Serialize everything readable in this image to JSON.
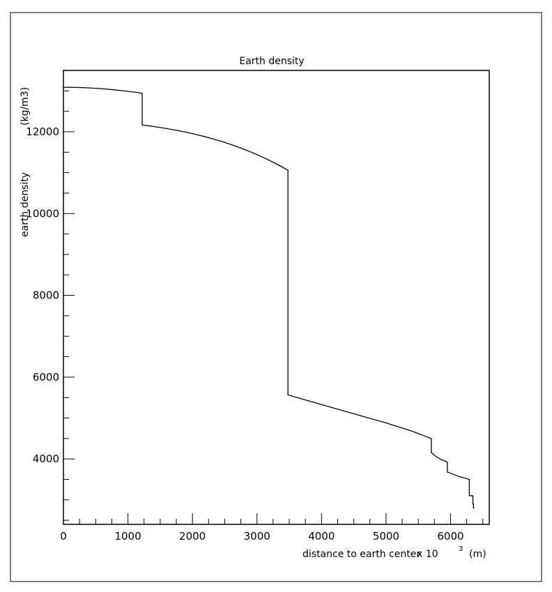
{
  "chart_data": {
    "type": "line",
    "title": "Earth density",
    "xlabel": "distance to earth center",
    "x_multiplier": "x 10",
    "x_multiplier_exp": "3",
    "x_unit": "(m)",
    "ylabel_main": "earth density",
    "ylabel_unit": "(kg/m3)",
    "xlim": [
      0,
      6600
    ],
    "ylim": [
      2400,
      13500
    ],
    "xticks": [
      0,
      1000,
      2000,
      3000,
      4000,
      5000,
      6000
    ],
    "yticks": [
      4000,
      6000,
      8000,
      10000,
      12000
    ],
    "grid": false,
    "series": [
      {
        "points": [
          [
            0,
            13088
          ],
          [
            100,
            13087
          ],
          [
            200,
            13084
          ],
          [
            300,
            13079
          ],
          [
            400,
            13072
          ],
          [
            500,
            13063
          ],
          [
            600,
            13052
          ],
          [
            700,
            13039
          ],
          [
            800,
            13024
          ],
          [
            900,
            13008
          ],
          [
            1000,
            12989
          ],
          [
            1100,
            12969
          ],
          [
            1221,
            12942
          ],
          [
            1221,
            12166
          ],
          [
            1300,
            12150
          ],
          [
            1400,
            12128
          ],
          [
            1500,
            12104
          ],
          [
            1600,
            12079
          ],
          [
            1700,
            12051
          ],
          [
            1800,
            12021
          ],
          [
            1900,
            11989
          ],
          [
            2000,
            11954
          ],
          [
            2100,
            11917
          ],
          [
            2200,
            11877
          ],
          [
            2300,
            11834
          ],
          [
            2400,
            11788
          ],
          [
            2500,
            11739
          ],
          [
            2600,
            11686
          ],
          [
            2700,
            11631
          ],
          [
            2800,
            11571
          ],
          [
            2900,
            11508
          ],
          [
            3000,
            11441
          ],
          [
            3100,
            11370
          ],
          [
            3200,
            11295
          ],
          [
            3300,
            11215
          ],
          [
            3400,
            11130
          ],
          [
            3480,
            11059
          ],
          [
            3480,
            5566
          ],
          [
            3600,
            5510
          ],
          [
            3800,
            5420
          ],
          [
            4000,
            5330
          ],
          [
            4200,
            5240
          ],
          [
            4400,
            5150
          ],
          [
            4600,
            5060
          ],
          [
            4800,
            4970
          ],
          [
            5000,
            4880
          ],
          [
            5200,
            4780
          ],
          [
            5400,
            4680
          ],
          [
            5600,
            4560
          ],
          [
            5701,
            4500
          ],
          [
            5701,
            4160
          ],
          [
            5771,
            4060
          ],
          [
            5850,
            3990
          ],
          [
            5950,
            3920
          ],
          [
            5950,
            3680
          ],
          [
            6050,
            3620
          ],
          [
            6151,
            3560
          ],
          [
            6200,
            3540
          ],
          [
            6291,
            3500
          ],
          [
            6291,
            3100
          ],
          [
            6346,
            3100
          ],
          [
            6346,
            2900
          ],
          [
            6356,
            2900
          ],
          [
            6356,
            2800
          ],
          [
            6368,
            2800
          ]
        ]
      }
    ]
  }
}
